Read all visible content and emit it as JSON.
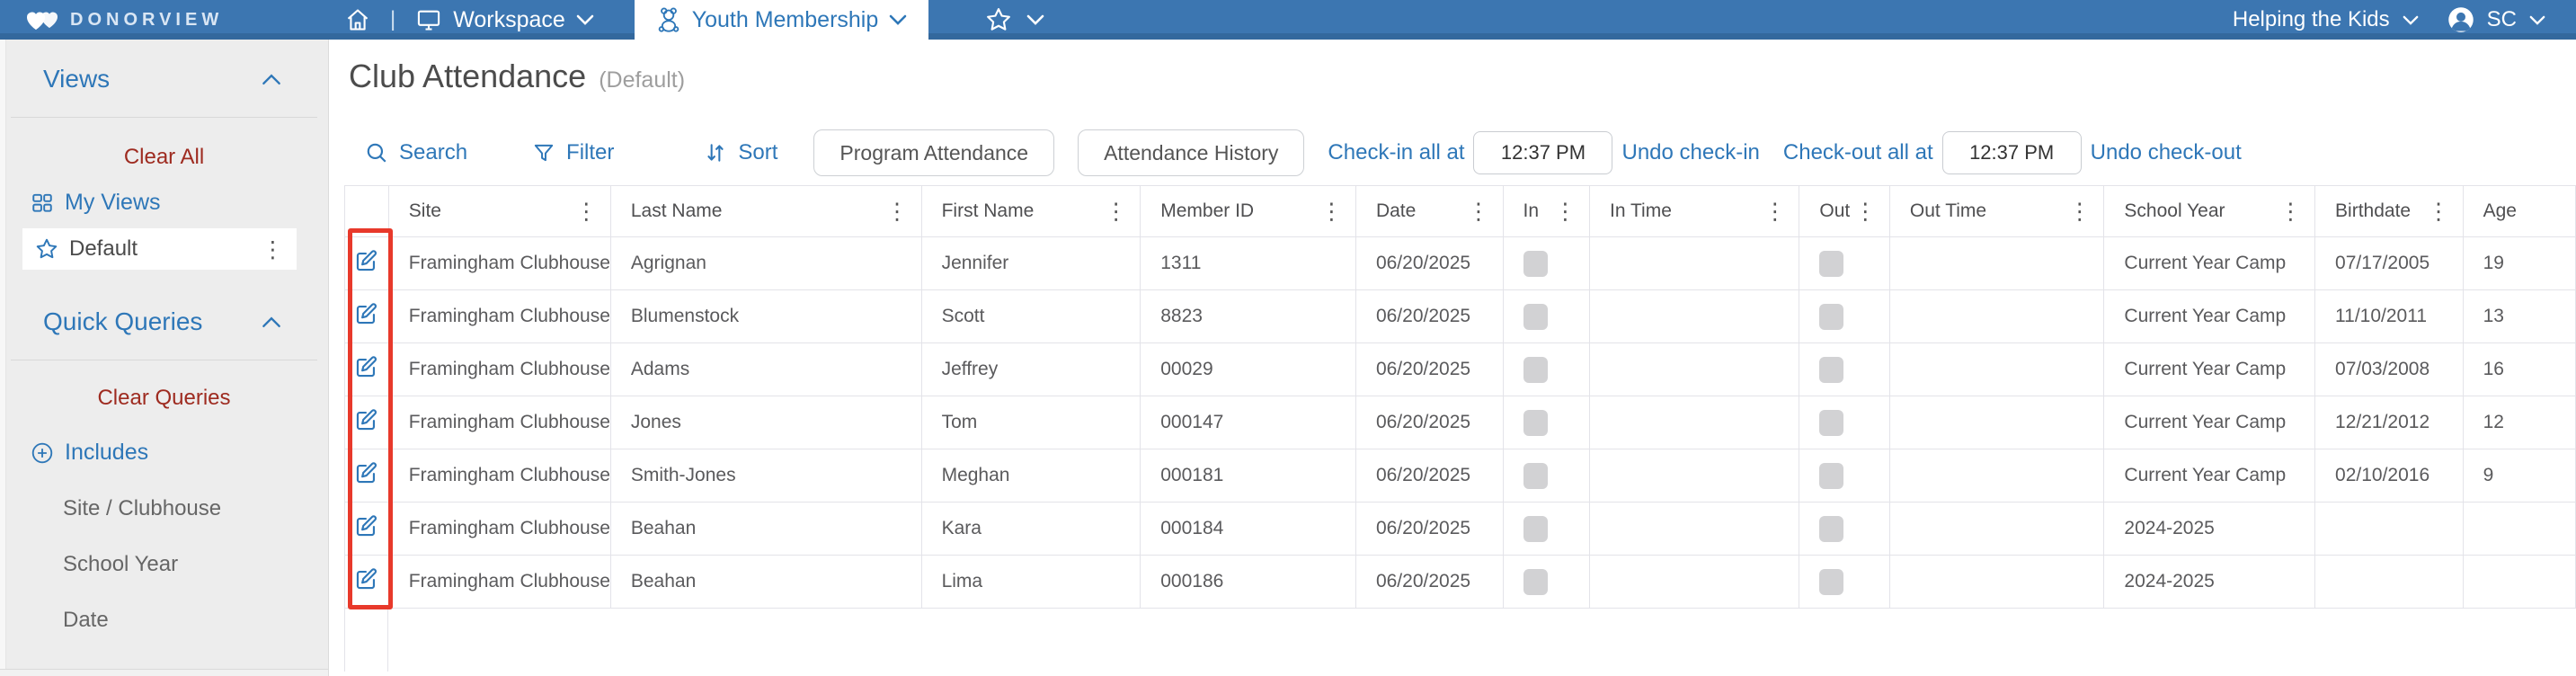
{
  "colors": {
    "nav_blue": "#3c76b1",
    "nav_strip_blue": "#33689d",
    "accent_blue": "#2e77b8",
    "clear_red": "#9e2b20",
    "annotation_red": "#e8392b",
    "checkbox_gray": "#d2d2d4"
  },
  "nav": {
    "brand": "DONORVIEW",
    "workspace_label": "Workspace",
    "active_tab": "Youth Membership",
    "org_label": "Helping the Kids",
    "user_initials": "SC"
  },
  "sidebar": {
    "views": {
      "title": "Views",
      "clear_label": "Clear All",
      "my_views_label": "My Views",
      "selected_view": "Default"
    },
    "quick_queries": {
      "title": "Quick Queries",
      "clear_label": "Clear Queries",
      "includes_label": "Includes",
      "items": [
        "Site / Clubhouse",
        "School Year",
        "Date"
      ]
    }
  },
  "main": {
    "title": "Club Attendance",
    "subtitle": "(Default)",
    "toolbar": {
      "search": "Search",
      "filter": "Filter",
      "sort": "Sort",
      "program_attendance": "Program Attendance",
      "attendance_history": "Attendance History",
      "checkin_label": "Check-in all at",
      "checkin_time": "12:37 PM",
      "undo_checkin": "Undo check-in",
      "checkout_label": "Check-out all at",
      "checkout_time": "12:37 PM",
      "undo_checkout": "Undo check-out"
    },
    "table": {
      "columns": [
        "Site",
        "Last Name",
        "First Name",
        "Member ID",
        "Date",
        "In",
        "In Time",
        "Out",
        "Out Time",
        "School Year",
        "Birthdate",
        "Age"
      ],
      "rows": [
        {
          "site": "Framingham Clubhouse",
          "last": "Agrignan",
          "first": "Jennifer",
          "member_id": "1311",
          "date": "06/20/2025",
          "in": false,
          "in_time": "",
          "out": false,
          "out_time": "",
          "school_year": "Current Year Camp",
          "birthdate": "07/17/2005",
          "age": "19"
        },
        {
          "site": "Framingham Clubhouse",
          "last": "Blumenstock",
          "first": "Scott",
          "member_id": "8823",
          "date": "06/20/2025",
          "in": false,
          "in_time": "",
          "out": false,
          "out_time": "",
          "school_year": "Current Year Camp",
          "birthdate": "11/10/2011",
          "age": "13"
        },
        {
          "site": "Framingham Clubhouse",
          "last": "Adams",
          "first": "Jeffrey",
          "member_id": "00029",
          "date": "06/20/2025",
          "in": false,
          "in_time": "",
          "out": false,
          "out_time": "",
          "school_year": "Current Year Camp",
          "birthdate": "07/03/2008",
          "age": "16"
        },
        {
          "site": "Framingham Clubhouse",
          "last": "Jones",
          "first": "Tom",
          "member_id": "000147",
          "date": "06/20/2025",
          "in": false,
          "in_time": "",
          "out": false,
          "out_time": "",
          "school_year": "Current Year Camp",
          "birthdate": "12/21/2012",
          "age": "12"
        },
        {
          "site": "Framingham Clubhouse",
          "last": "Smith-Jones",
          "first": "Meghan",
          "member_id": "000181",
          "date": "06/20/2025",
          "in": false,
          "in_time": "",
          "out": false,
          "out_time": "",
          "school_year": "Current Year Camp",
          "birthdate": "02/10/2016",
          "age": "9"
        },
        {
          "site": "Framingham Clubhouse",
          "last": "Beahan",
          "first": "Kara",
          "member_id": "000184",
          "date": "06/20/2025",
          "in": false,
          "in_time": "",
          "out": false,
          "out_time": "",
          "school_year": "2024-2025",
          "birthdate": "",
          "age": ""
        },
        {
          "site": "Framingham Clubhouse",
          "last": "Beahan",
          "first": "Lima",
          "member_id": "000186",
          "date": "06/20/2025",
          "in": false,
          "in_time": "",
          "out": false,
          "out_time": "",
          "school_year": "2024-2025",
          "birthdate": "",
          "age": ""
        }
      ]
    }
  }
}
